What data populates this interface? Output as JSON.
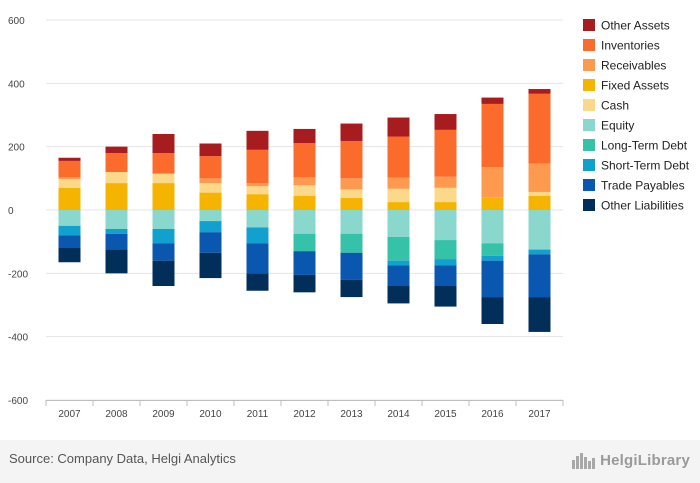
{
  "chart_data": {
    "type": "bar",
    "stacked": true,
    "categories": [
      "2007",
      "2008",
      "2009",
      "2010",
      "2011",
      "2012",
      "2013",
      "2014",
      "2015",
      "2016",
      "2017"
    ],
    "ylim": [
      -600,
      600
    ],
    "yticks": [
      600,
      400,
      200,
      0,
      -200,
      -400,
      -600
    ],
    "grid": true,
    "legend_position": "right",
    "assets_series": [
      {
        "name": "Fixed Assets",
        "color": "#f5b400",
        "values": [
          70,
          85,
          85,
          55,
          50,
          45,
          38,
          25,
          25,
          40,
          45
        ]
      },
      {
        "name": "Cash",
        "color": "#fcd98a",
        "values": [
          28,
          35,
          30,
          30,
          25,
          33,
          27,
          42,
          45,
          0,
          12
        ]
      },
      {
        "name": "Receivables",
        "color": "#fd9a4f",
        "values": [
          5,
          0,
          0,
          15,
          10,
          25,
          35,
          35,
          35,
          95,
          90
        ]
      },
      {
        "name": "Inventories",
        "color": "#fb6b2b",
        "values": [
          52,
          60,
          65,
          70,
          105,
          108,
          118,
          130,
          148,
          200,
          220
        ]
      },
      {
        "name": "Other Assets",
        "color": "#a61c1f",
        "values": [
          10,
          20,
          60,
          40,
          60,
          45,
          55,
          60,
          50,
          20,
          15
        ]
      }
    ],
    "liabilities_series": [
      {
        "name": "Equity",
        "color": "#8ad8cd",
        "values": [
          50,
          60,
          60,
          35,
          55,
          75,
          75,
          85,
          95,
          105,
          125
        ]
      },
      {
        "name": "Long-Term Debt",
        "color": "#35c2a8",
        "values": [
          0,
          0,
          0,
          0,
          0,
          55,
          60,
          75,
          60,
          40,
          0
        ]
      },
      {
        "name": "Short-Term Debt",
        "color": "#12a0cf",
        "values": [
          30,
          15,
          45,
          35,
          50,
          0,
          0,
          15,
          20,
          15,
          15
        ]
      },
      {
        "name": "Trade Payables",
        "color": "#0a57b0",
        "values": [
          40,
          50,
          55,
          65,
          95,
          75,
          85,
          65,
          65,
          115,
          135
        ]
      },
      {
        "name": "Other Liabilities",
        "color": "#012f5a",
        "values": [
          45,
          75,
          80,
          80,
          55,
          55,
          55,
          55,
          65,
          85,
          110
        ]
      }
    ],
    "legend_order": [
      "Other Assets",
      "Inventories",
      "Receivables",
      "Fixed Assets",
      "Cash",
      "Equity",
      "Long-Term Debt",
      "Short-Term Debt",
      "Trade Payables",
      "Other Liabilities"
    ],
    "colors": {
      "Other Assets": "#a61c1f",
      "Inventories": "#fb6b2b",
      "Receivables": "#fd9a4f",
      "Fixed Assets": "#f5b400",
      "Cash": "#fcd98a",
      "Equity": "#8ad8cd",
      "Long-Term Debt": "#35c2a8",
      "Short-Term Debt": "#12a0cf",
      "Trade Payables": "#0a57b0",
      "Other Liabilities": "#012f5a"
    }
  },
  "footer": {
    "source": "Source: Company Data, Helgi Analytics",
    "brand": "HelgiLibrary",
    "brand_icon": "city-skyline-icon"
  }
}
